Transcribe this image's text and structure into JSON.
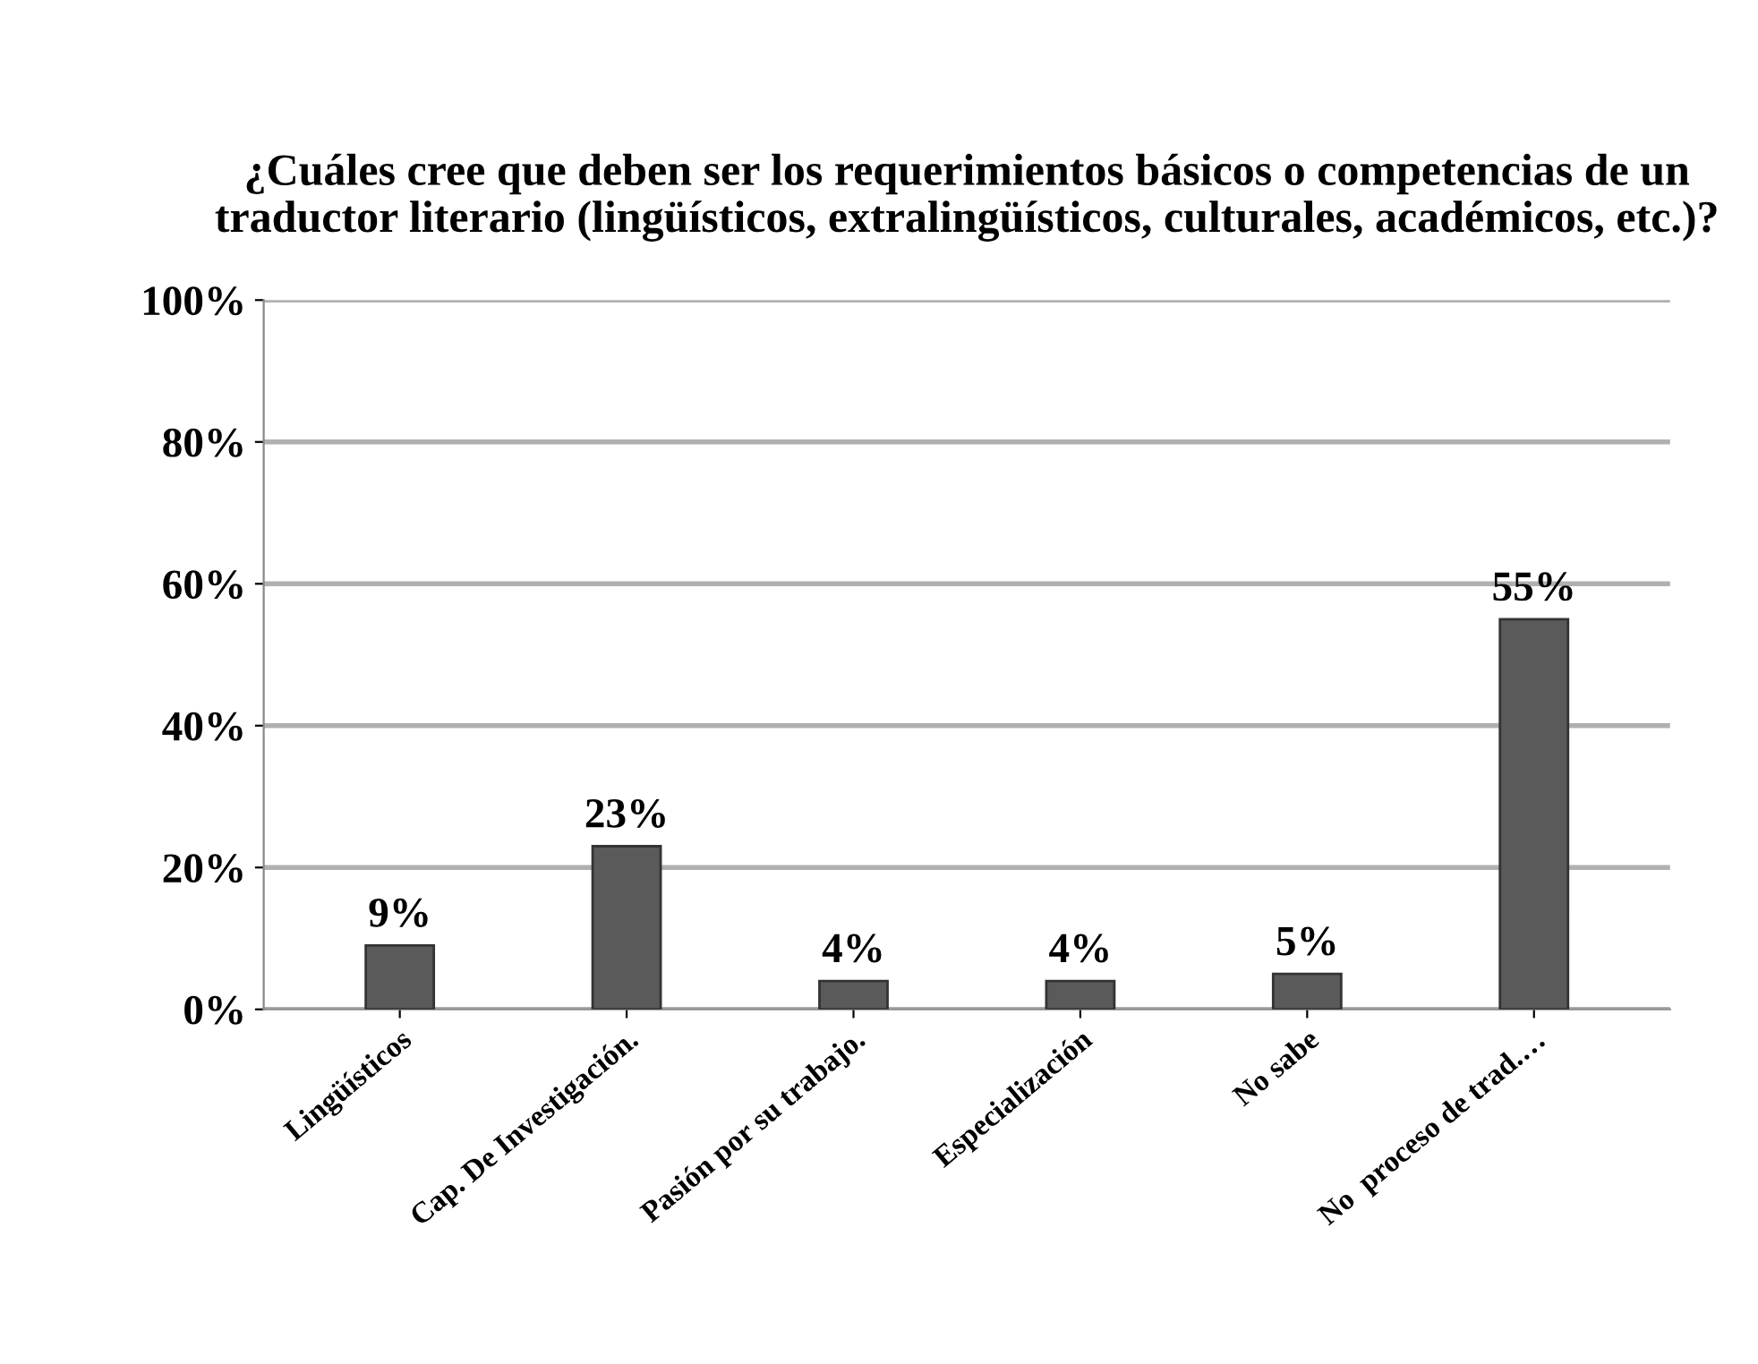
{
  "chart_data": {
    "type": "bar",
    "title": "¿Cuáles cree que deben ser los requerimientos básicos o competencias de un traductor literario (lingüísticos, extralingüísticos, culturales, académicos, etc.)?",
    "categories": [
      "Lingüísticos",
      "Cap. De Investigación.",
      "Pasión por su trabajo.",
      "Especialización",
      "No sabe",
      "No  proceso de trad.…"
    ],
    "values": [
      9,
      23,
      4,
      4,
      5,
      55
    ],
    "value_labels": [
      "9%",
      "23%",
      "4%",
      "4%",
      "5%",
      "55%"
    ],
    "color": "#5a5a5a",
    "ylim": [
      0,
      100
    ],
    "yticks": [
      {
        "value": 0,
        "label": "0%"
      },
      {
        "value": 20,
        "label": "20%"
      },
      {
        "value": 40,
        "label": "40%"
      },
      {
        "value": 60,
        "label": "60%"
      },
      {
        "value": 80,
        "label": "80%"
      },
      {
        "value": 100,
        "label": "100%"
      }
    ],
    "grid": "y"
  }
}
